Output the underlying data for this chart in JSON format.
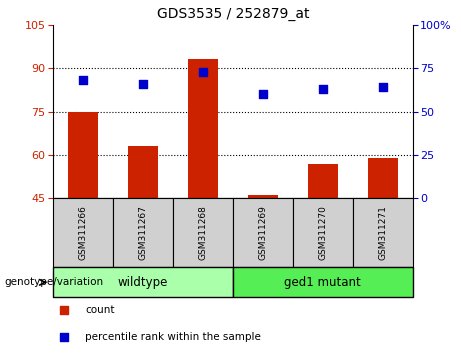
{
  "title": "GDS3535 / 252879_at",
  "samples": [
    "GSM311266",
    "GSM311267",
    "GSM311268",
    "GSM311269",
    "GSM311270",
    "GSM311271"
  ],
  "bar_values": [
    75.0,
    63.0,
    93.0,
    46.0,
    57.0,
    59.0
  ],
  "percentile_values": [
    68.0,
    66.0,
    73.0,
    60.0,
    63.0,
    64.0
  ],
  "bar_color": "#cc2200",
  "dot_color": "#0000cc",
  "ylim_left": [
    45,
    105
  ],
  "ylim_right": [
    0,
    100
  ],
  "left_yticks": [
    45,
    60,
    75,
    90,
    105
  ],
  "right_yticks": [
    0,
    25,
    50,
    75,
    100
  ],
  "right_yticklabels": [
    "0",
    "25",
    "50",
    "75",
    "100%"
  ],
  "left_ytick_color": "#cc2200",
  "right_ytick_color": "#0000cc",
  "groups": [
    {
      "label": "wildtype",
      "indices": [
        0,
        1,
        2
      ],
      "color": "#aaffaa"
    },
    {
      "label": "ged1 mutant",
      "indices": [
        3,
        4,
        5
      ],
      "color": "#55ee55"
    }
  ],
  "group_label_prefix": "genotype/variation",
  "xlabel_area_color": "#cccccc",
  "legend_items": [
    {
      "label": "count",
      "color": "#cc2200",
      "marker": "s"
    },
    {
      "label": "percentile rank within the sample",
      "color": "#0000cc",
      "marker": "s"
    }
  ],
  "grid_linestyle": "dotted",
  "bar_bottom": 45,
  "bar_width": 0.5,
  "dot_size": 40,
  "dot_marker": "s"
}
